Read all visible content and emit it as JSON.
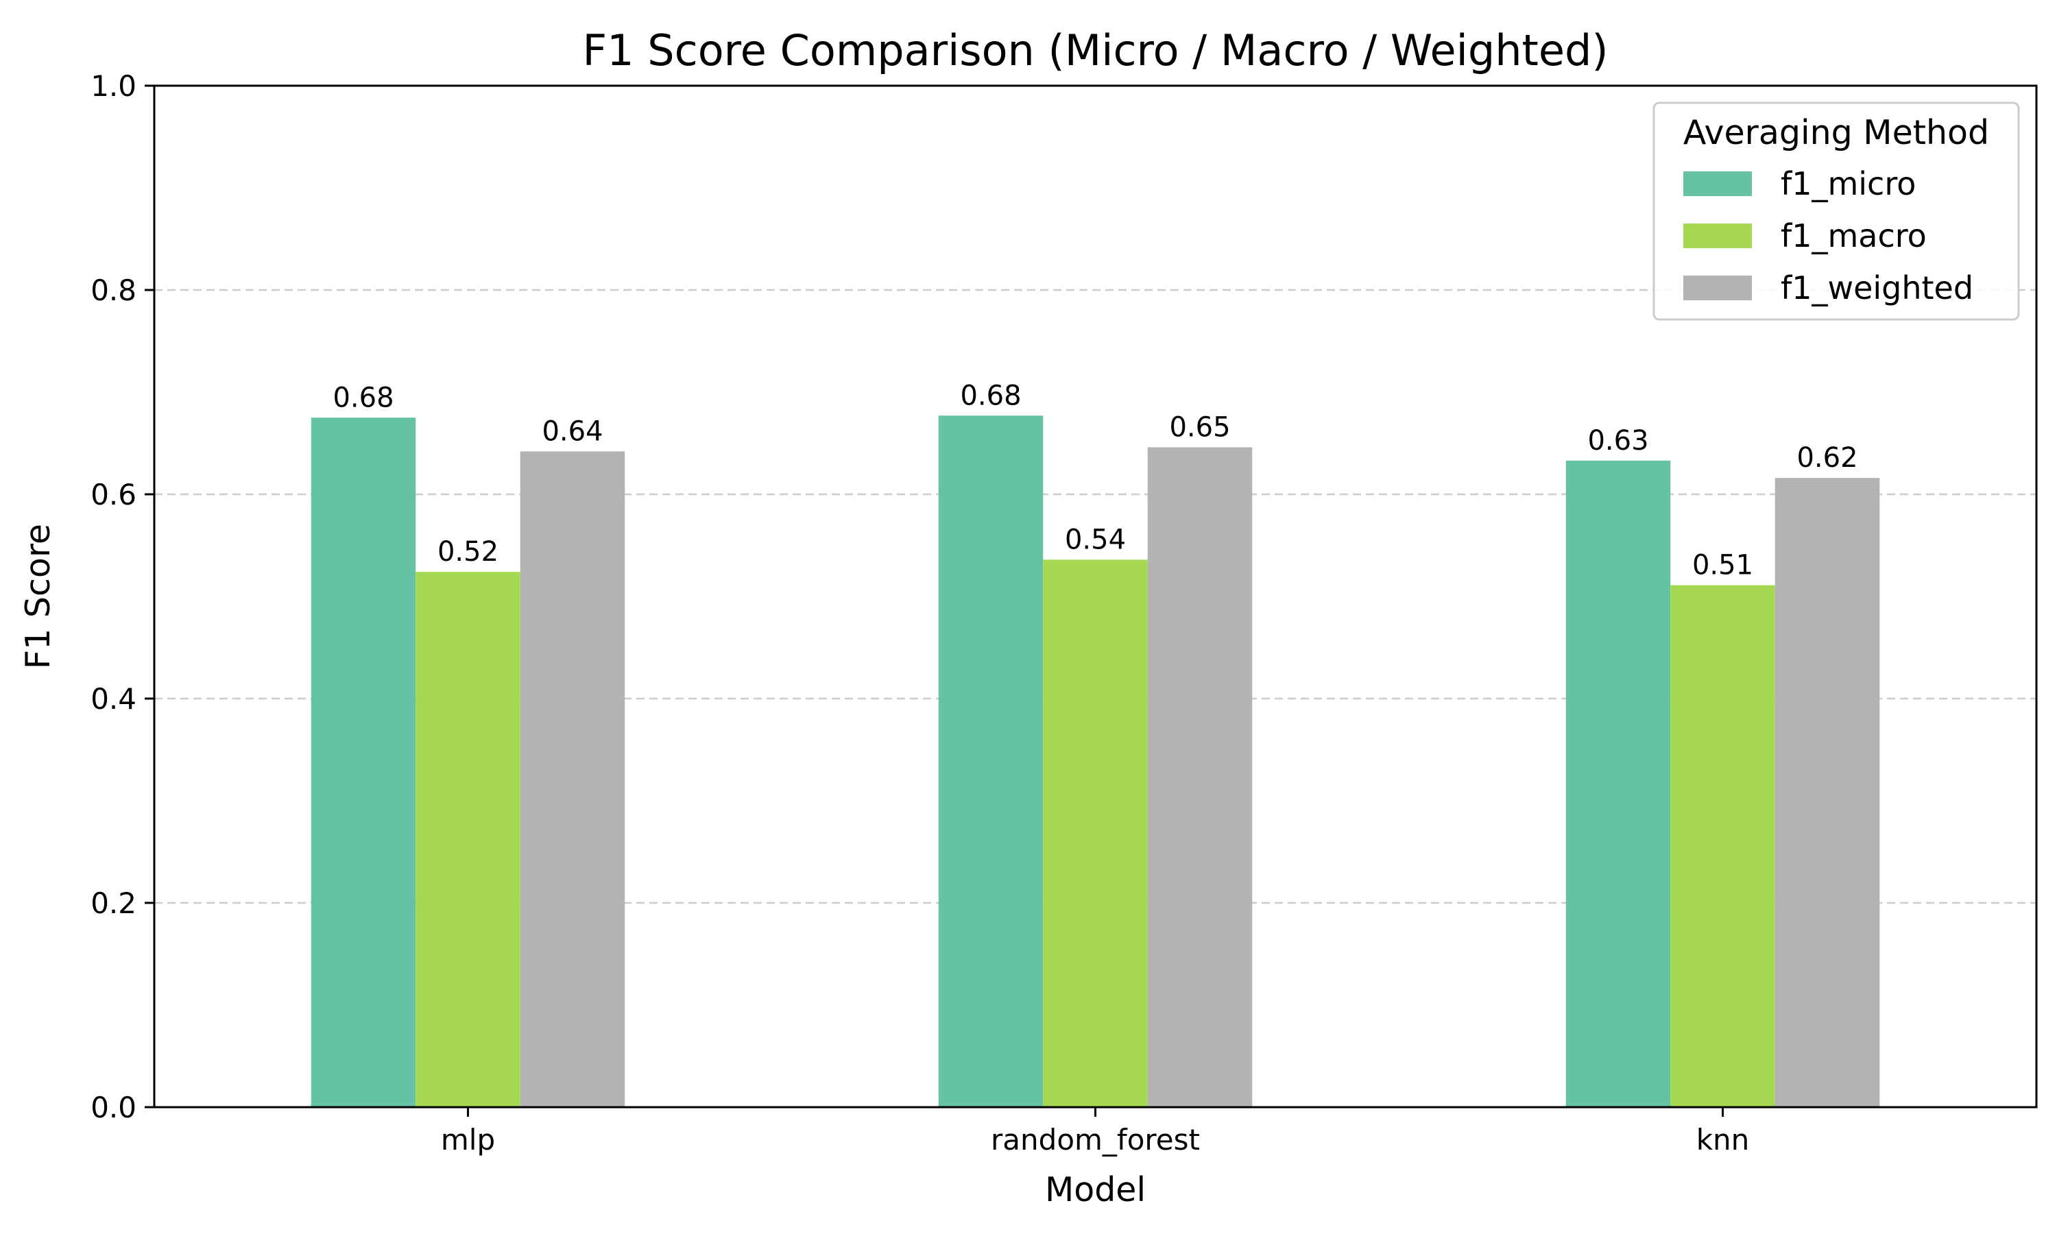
{
  "chart_data": {
    "type": "bar",
    "title": "F1 Score Comparison (Micro / Macro / Weighted)",
    "xlabel": "Model",
    "ylabel": "F1 Score",
    "categories": [
      "mlp",
      "random_forest",
      "knn"
    ],
    "series": [
      {
        "name": "f1_micro",
        "values": [
          0.675,
          0.677,
          0.633
        ],
        "labels": [
          "0.68",
          "0.68",
          "0.63"
        ],
        "color": "#66c2a5"
      },
      {
        "name": "f1_macro",
        "values": [
          0.524,
          0.536,
          0.511
        ],
        "labels": [
          "0.52",
          "0.54",
          "0.51"
        ],
        "color": "#a6d854"
      },
      {
        "name": "f1_weighted",
        "values": [
          0.642,
          0.646,
          0.616
        ],
        "labels": [
          "0.64",
          "0.65",
          "0.62"
        ],
        "color": "#b3b3b3"
      }
    ],
    "ylim": [
      0,
      1.0
    ],
    "yticks": [
      "0.0",
      "0.2",
      "0.4",
      "0.6",
      "0.8",
      "1.0"
    ],
    "grid": "y dashed",
    "legend": {
      "title": "Averaging Method",
      "placement": "top-right"
    }
  }
}
